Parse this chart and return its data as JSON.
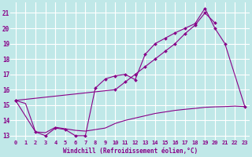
{
  "xlabel": "Windchill (Refroidissement éolien,°C)",
  "bg_color": "#c0e8e8",
  "grid_color": "#ffffff",
  "line_color": "#880088",
  "xlim": [
    -0.5,
    23.5
  ],
  "ylim": [
    12.7,
    21.7
  ],
  "yticks": [
    13,
    14,
    15,
    16,
    17,
    18,
    19,
    20,
    21
  ],
  "xticks": [
    0,
    1,
    2,
    3,
    4,
    5,
    6,
    7,
    8,
    9,
    10,
    11,
    12,
    13,
    14,
    15,
    16,
    17,
    18,
    19,
    20,
    21,
    22,
    23
  ],
  "line_nomark_x": [
    0,
    1,
    2,
    3,
    4,
    5,
    6,
    7,
    8,
    9,
    10,
    11,
    12,
    13,
    14,
    15,
    16,
    17,
    18,
    19,
    20,
    21,
    22,
    23
  ],
  "line_nomark_y": [
    15.3,
    15.1,
    13.25,
    13.2,
    13.55,
    13.45,
    13.35,
    13.3,
    13.4,
    13.5,
    13.8,
    14.0,
    14.15,
    14.3,
    14.45,
    14.55,
    14.65,
    14.72,
    14.78,
    14.85,
    14.88,
    14.9,
    14.93,
    14.9
  ],
  "line_peaked_x": [
    0,
    2,
    3,
    4,
    5,
    6,
    7,
    8,
    9,
    10,
    11,
    12,
    13,
    14,
    15,
    16,
    17,
    18,
    19,
    20,
    21,
    23
  ],
  "line_peaked_y": [
    15.3,
    13.25,
    13.0,
    13.5,
    13.4,
    13.0,
    13.0,
    16.1,
    16.7,
    16.9,
    17.0,
    16.65,
    18.3,
    19.0,
    19.35,
    19.7,
    20.0,
    20.3,
    21.3,
    20.0,
    19.0,
    14.9
  ],
  "line_rising_x": [
    0,
    10,
    11,
    12,
    13,
    14,
    15,
    16,
    17,
    18,
    19,
    20
  ],
  "line_rising_y": [
    15.3,
    16.0,
    16.5,
    17.0,
    17.5,
    18.0,
    18.5,
    19.0,
    19.65,
    20.2,
    21.0,
    20.35
  ]
}
